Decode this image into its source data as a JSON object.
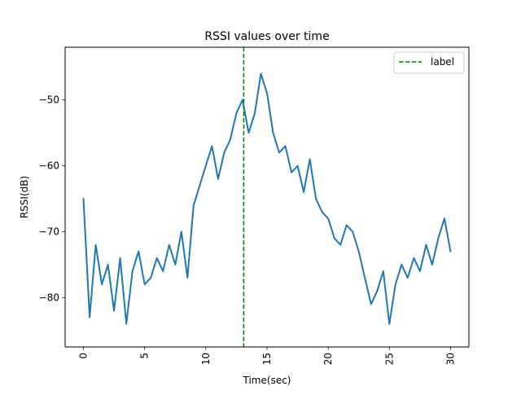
{
  "chart_data": {
    "type": "line",
    "title": "RSSI values over time",
    "xlabel": "Time(sec)",
    "ylabel": "RSSI(dB)",
    "xlim": [
      -1.5,
      31.5
    ],
    "ylim": [
      -87.5,
      -42
    ],
    "xticks": [
      0,
      5,
      10,
      15,
      20,
      25,
      30
    ],
    "xtick_labels": [
      "0",
      "5",
      "10",
      "15",
      "20",
      "25",
      "30"
    ],
    "xtick_rotation": 90,
    "yticks": [
      -80,
      -70,
      -60,
      -50
    ],
    "ytick_labels": [
      "−80",
      "−70",
      "−60",
      "−50"
    ],
    "grid": false,
    "legend_position": "top-right",
    "series": [
      {
        "color": "#1f77b4",
        "style": "solid",
        "x": [
          0,
          0.5,
          1,
          1.5,
          2,
          2.5,
          3,
          3.5,
          4,
          4.5,
          5,
          5.5,
          6,
          6.5,
          7,
          7.5,
          8,
          8.5,
          9,
          9.5,
          10,
          10.5,
          11,
          11.5,
          12,
          12.5,
          13,
          13.5,
          14,
          14.5,
          15,
          15.5,
          16,
          16.5,
          17,
          17.5,
          18,
          18.5,
          19,
          19.5,
          20,
          20.5,
          21,
          21.5,
          22,
          22.5,
          23,
          23.5,
          24,
          24.5,
          25,
          25.5,
          26,
          26.5,
          27,
          27.5,
          28,
          28.5,
          29,
          29.5,
          30
        ],
        "y": [
          -65,
          -83,
          -72,
          -78,
          -75,
          -82,
          -74,
          -84,
          -76,
          -73,
          -78,
          -77,
          -74,
          -76,
          -72,
          -75,
          -70,
          -77,
          -66,
          -63,
          -60,
          -57,
          -62,
          -58,
          -56,
          -52,
          -50,
          -55,
          -52,
          -46,
          -49,
          -55,
          -58,
          -57,
          -61,
          -60,
          -64,
          -59,
          -65,
          -67,
          -68,
          -71,
          -72,
          -69,
          -70,
          -73,
          -77,
          -81,
          -79,
          -76,
          -84,
          -78,
          -75,
          -77,
          -74,
          -76,
          -72,
          -75,
          -71,
          -68,
          -73
        ]
      }
    ],
    "vlines": [
      {
        "x": 13.1,
        "color": "#008000",
        "style": "dashed",
        "label": "label"
      }
    ]
  }
}
